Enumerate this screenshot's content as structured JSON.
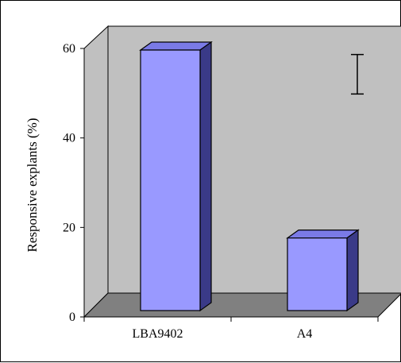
{
  "chart_data": {
    "type": "bar",
    "categories": [
      "LBA9402",
      "A4"
    ],
    "values": [
      60,
      18
    ],
    "error_bar_range": [
      50,
      59
    ],
    "title": "",
    "xlabel": "",
    "ylabel": "Responsive explants (%)",
    "ylim": [
      0,
      60
    ],
    "yticks": [
      0,
      20,
      40,
      60
    ],
    "grid": false,
    "legend": "none",
    "colors": {
      "bar_front": "#9999ff",
      "bar_top": "#7a7ae6",
      "bar_side": "#3a3a88",
      "back_wall": "#c0c0c0",
      "floor": "#808080",
      "axis": "#000000"
    }
  }
}
